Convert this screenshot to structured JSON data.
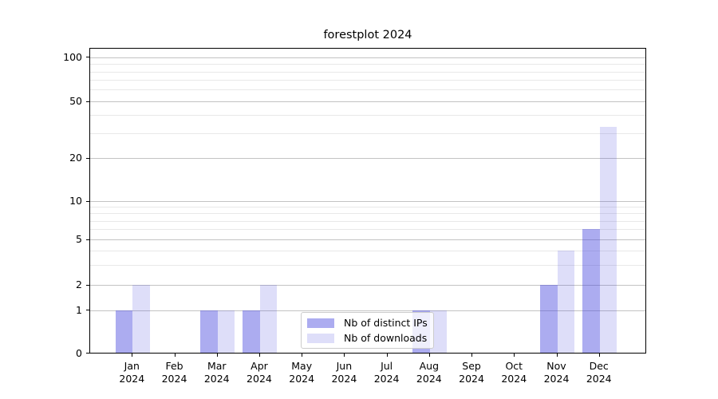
{
  "chart_data": {
    "type": "bar",
    "title": "forestplot 2024",
    "x": {
      "months": [
        "Jan",
        "Feb",
        "Mar",
        "Apr",
        "May",
        "Jun",
        "Jul",
        "Aug",
        "Sep",
        "Oct",
        "Nov",
        "Dec"
      ],
      "year": "2024"
    },
    "series": [
      {
        "key": "ips",
        "name": "Nb of distinct IPs",
        "color": "rgba(72,72,222,0.45)",
        "values": [
          1,
          0,
          1,
          1,
          0,
          0,
          0,
          1,
          0,
          0,
          2,
          6
        ]
      },
      {
        "key": "downloads",
        "name": "Nb of downloads",
        "color": "rgba(72,72,222,0.18)",
        "values": [
          2,
          0,
          1,
          2,
          0,
          0,
          0,
          1,
          0,
          0,
          4,
          33
        ]
      }
    ],
    "y_axis": {
      "scale": "quasi-log",
      "range": [
        0,
        100
      ],
      "major_ticks": [
        0,
        1,
        2,
        5,
        10,
        20,
        50,
        100
      ],
      "minor_ticks": [
        3,
        4,
        6,
        7,
        8,
        9,
        30,
        40,
        60,
        70,
        80,
        90
      ]
    },
    "grid": true,
    "legend_position": "inside lower-center",
    "colors": {
      "bar_ips": "rgba(72,72,222,0.45)",
      "bar_downloads": "rgba(72,72,222,0.18)",
      "grid_major": "#c3c3c3",
      "grid_minor": "#e8e8e8",
      "axis": "#000000"
    }
  }
}
